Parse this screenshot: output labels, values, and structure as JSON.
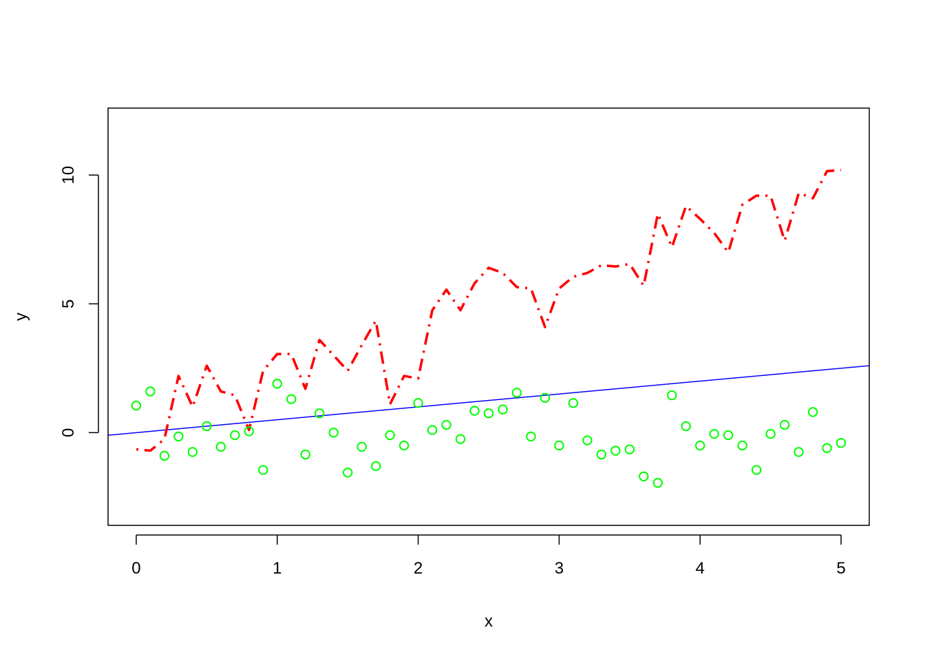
{
  "chart_data": {
    "type": "scatter",
    "title": "",
    "xlabel": "x",
    "ylabel": "y",
    "xlim": [
      -0.2,
      5.2
    ],
    "ylim": [
      -3.6,
      12.6
    ],
    "x_ticks": [
      0,
      1,
      2,
      3,
      4,
      5
    ],
    "y_ticks": [
      0,
      5,
      10
    ],
    "grid": false,
    "legend": "none",
    "x": [
      0,
      0.1,
      0.2,
      0.3,
      0.4,
      0.5,
      0.6,
      0.7,
      0.8,
      0.9,
      1.0,
      1.1,
      1.2,
      1.3,
      1.4,
      1.5,
      1.6,
      1.7,
      1.8,
      1.9,
      2.0,
      2.1,
      2.2,
      2.3,
      2.4,
      2.5,
      2.6,
      2.7,
      2.8,
      2.9,
      3.0,
      3.1,
      3.2,
      3.3,
      3.4,
      3.5,
      3.6,
      3.7,
      3.8,
      3.9,
      4.0,
      4.1,
      4.2,
      4.3,
      4.4,
      4.5,
      4.6,
      4.7,
      4.8,
      4.9,
      5.0
    ],
    "series": [
      {
        "kind": "line",
        "style": "dotdash",
        "color": "#ff0000",
        "values": [
          -0.65,
          -0.7,
          -0.25,
          2.2,
          1.0,
          2.6,
          1.6,
          1.45,
          0.1,
          2.4,
          3.05,
          3.05,
          1.7,
          3.6,
          3.0,
          2.4,
          3.4,
          4.35,
          1.1,
          2.2,
          2.1,
          4.75,
          5.55,
          4.75,
          5.8,
          6.4,
          6.2,
          5.65,
          5.6,
          4.1,
          5.6,
          6.05,
          6.2,
          6.5,
          6.45,
          6.55,
          5.7,
          8.5,
          7.2,
          8.8,
          8.3,
          7.75,
          7.0,
          8.85,
          9.2,
          9.2,
          7.45,
          9.3,
          9.1,
          10.15,
          10.2
        ]
      },
      {
        "kind": "points",
        "shape": "open-circle",
        "color": "#00ff00",
        "values": [
          1.05,
          1.6,
          -0.9,
          -0.15,
          -0.75,
          0.25,
          -0.55,
          -0.1,
          0.05,
          -1.45,
          1.9,
          1.3,
          -0.85,
          0.75,
          0.0,
          -1.55,
          -0.55,
          -1.3,
          -0.1,
          -0.5,
          1.15,
          0.1,
          0.3,
          -0.25,
          0.85,
          0.75,
          0.9,
          1.55,
          -0.15,
          1.35,
          -0.5,
          1.15,
          -0.3,
          -0.85,
          -0.7,
          -0.65,
          -1.7,
          -1.95,
          1.45,
          0.25,
          -0.5,
          -0.05,
          -0.1,
          -0.5,
          -1.45,
          -0.05,
          0.3,
          -0.75,
          0.8,
          -0.6,
          -0.4
        ]
      }
    ],
    "reference_line": {
      "kind": "abline",
      "color": "#0000ff",
      "intercept": 0,
      "slope": 0.5
    }
  }
}
